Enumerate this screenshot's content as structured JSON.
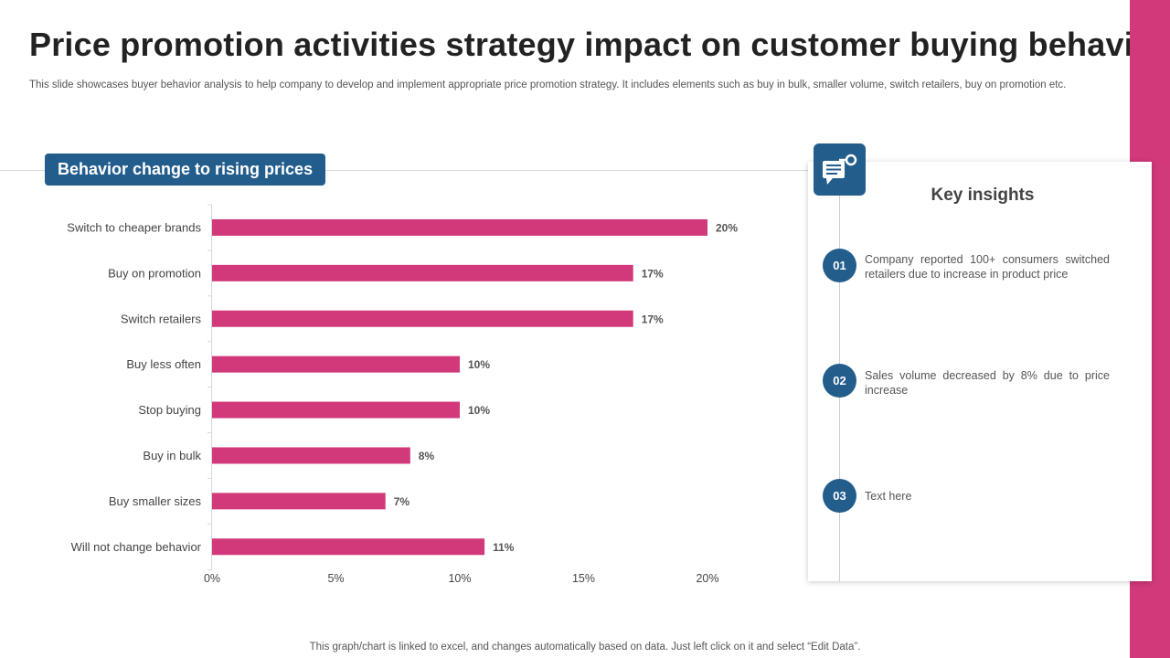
{
  "title": "Price promotion activities strategy impact on customer buying behavior",
  "subtitle": "This slide showcases buyer behavior analysis to help company to develop and implement appropriate price promotion strategy. It includes elements such as buy in bulk, smaller volume, switch retailers, buy on promotion etc.",
  "section_label": "Behavior change to rising prices",
  "footer": "This graph/chart is linked to excel,  and changes automatically based on data. Just left click on it and select “Edit Data”.",
  "colors": {
    "bar": "#d1397a",
    "accent": "#235d8c",
    "band": "#d1397a"
  },
  "chart_data": {
    "type": "bar",
    "orientation": "horizontal",
    "categories": [
      "Switch to cheaper brands",
      "Buy on promotion",
      "Switch retailers",
      "Buy less often",
      "Stop buying",
      "Buy in bulk",
      "Buy smaller sizes",
      "Will not change behavior"
    ],
    "values": [
      20,
      17,
      17,
      10,
      10,
      8,
      7,
      11
    ],
    "data_labels": [
      "20%",
      "17%",
      "17%",
      "10%",
      "10%",
      "8%",
      "7%",
      "11%"
    ],
    "xlim": [
      0,
      20
    ],
    "xticks": [
      0,
      5,
      10,
      15,
      20
    ],
    "xtick_labels": [
      "0%",
      "5%",
      "10%",
      "15%",
      "20%"
    ],
    "title": "Behavior change to rising prices",
    "xlabel": "",
    "ylabel": ""
  },
  "insights": {
    "title": "Key insights",
    "icon": "chat-key-icon",
    "items": [
      {
        "num": "01",
        "text": "Company reported 100+ consumers switched retailers due to increase in product price"
      },
      {
        "num": "02",
        "text": "Sales volume decreased by 8% due to price increase"
      },
      {
        "num": "03",
        "text": "Text here"
      }
    ]
  }
}
